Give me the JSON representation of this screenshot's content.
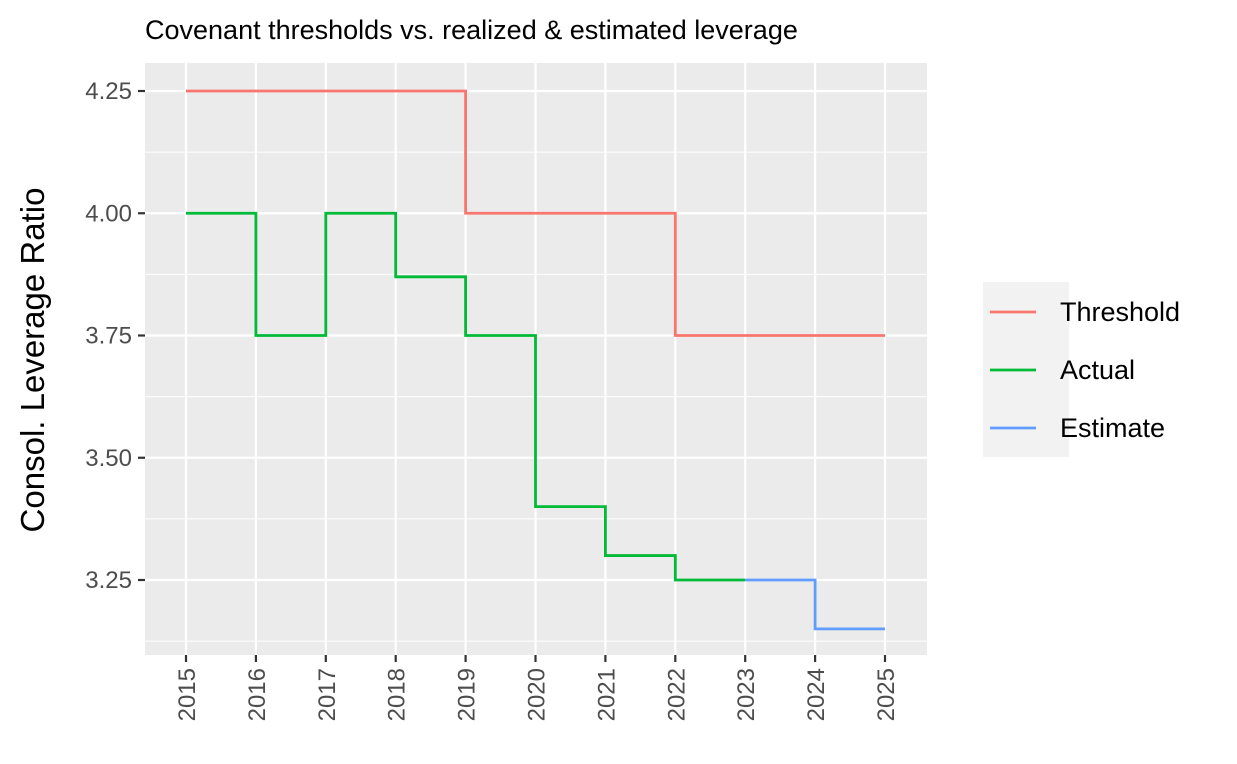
{
  "chart_data": {
    "type": "line",
    "step": true,
    "title": "Covenant thresholds vs. realized & estimated leverage",
    "xlabel": "",
    "ylabel": "Consol. Leverage Ratio",
    "xlim": [
      2015,
      2025
    ],
    "ylim": [
      3.1,
      4.3
    ],
    "x_ticks": [
      "2015",
      "2016",
      "2017",
      "2018",
      "2019",
      "2020",
      "2021",
      "2022",
      "2023",
      "2024",
      "2025"
    ],
    "y_ticks": [
      "3.25",
      "3.50",
      "3.75",
      "4.00",
      "4.25"
    ],
    "grid": true,
    "legend_position": "right",
    "series": [
      {
        "name": "Threshold",
        "color": "#F8766D",
        "x": [
          2015,
          2016,
          2017,
          2018,
          2019,
          2020,
          2021,
          2022,
          2023,
          2024,
          2025
        ],
        "y": [
          4.25,
          4.25,
          4.25,
          4.25,
          4.0,
          4.0,
          4.0,
          3.75,
          3.75,
          3.75,
          3.75
        ]
      },
      {
        "name": "Actual",
        "color": "#00BA38",
        "x": [
          2015,
          2016,
          2017,
          2018,
          2019,
          2020,
          2021,
          2022,
          2023
        ],
        "y": [
          4.0,
          3.75,
          4.0,
          3.87,
          3.75,
          3.4,
          3.3,
          3.25,
          3.25
        ]
      },
      {
        "name": "Estimate",
        "color": "#619CFF",
        "x": [
          2023,
          2024,
          2025
        ],
        "y": [
          3.25,
          3.15,
          3.15
        ]
      }
    ]
  }
}
